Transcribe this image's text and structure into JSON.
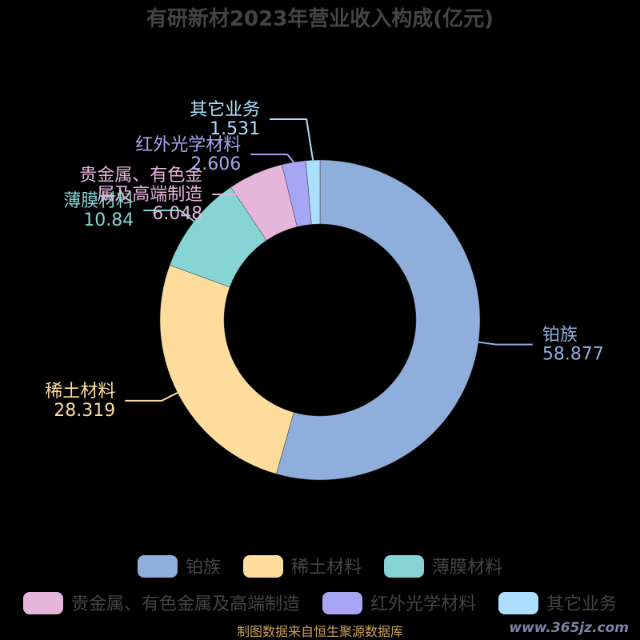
{
  "chart_data": {
    "type": "pie",
    "title": "有研新材2023年营业收入构成(亿元)",
    "slices": [
      {
        "name": "铂族",
        "value": 58.877,
        "color": "#8eaedc"
      },
      {
        "name": "稀土材料",
        "value": 28.319,
        "color": "#fedc9b"
      },
      {
        "name": "薄膜材料",
        "value": 10.84,
        "color": "#86d4d4"
      },
      {
        "name": "贵金属、有色金属及高端制造",
        "value": 6.048,
        "color": "#e6b5db"
      },
      {
        "name": "红外光学材料",
        "value": 2.606,
        "color": "#a6a6f4"
      },
      {
        "name": "其它业务",
        "value": 1.531,
        "color": "#acdffd"
      }
    ],
    "label_lines": [
      [
        "铂族"
      ],
      [
        "稀土材料"
      ],
      [
        "薄膜材料"
      ],
      [
        "贵金属、有色金",
        "属及高端制造"
      ],
      [
        "红外光学材料"
      ],
      [
        "其它业务"
      ]
    ],
    "value_labels": [
      "58.877",
      "28.319",
      "10.84",
      "6.048",
      "2.606",
      "1.531"
    ],
    "legend_placement": "bottom"
  },
  "footer": {
    "source": "制图数据来自恒生聚源数据库",
    "watermark": "www.365jz.com"
  }
}
